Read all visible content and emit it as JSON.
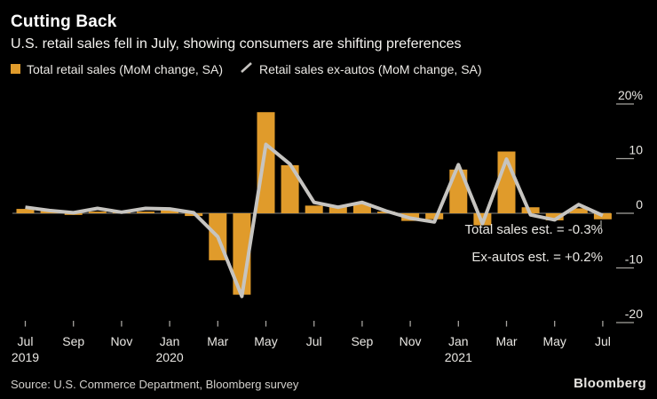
{
  "header": {
    "title": "Cutting Back",
    "subtitle": "U.S. retail sales fell in July, showing consumers are shifting preferences"
  },
  "legend": {
    "bars_label": "Total retail sales (MoM change, SA)",
    "line_label": "Retail sales ex-autos (MoM change, SA)"
  },
  "annotations": {
    "total_est": "Total sales est. = -0.3%",
    "ex_autos_est": "Ex-autos est. = +0.2%"
  },
  "footer": {
    "source": "Source: U.S. Commerce Department, Bloomberg survey",
    "brand": "Bloomberg"
  },
  "colors": {
    "background": "#000000",
    "bar": "#E09B2B",
    "line": "#C6C4C0",
    "tick": "#A5A39E",
    "zero_line": "#85837F",
    "axis_text": "#E9E7E3"
  },
  "chart_data": {
    "type": "bar+line",
    "title": "Cutting Back",
    "x": [
      "Jul 2019",
      "Aug 2019",
      "Sep 2019",
      "Oct 2019",
      "Nov 2019",
      "Dec 2019",
      "Jan 2020",
      "Feb 2020",
      "Mar 2020",
      "Apr 2020",
      "May 2020",
      "Jun 2020",
      "Jul 2020",
      "Aug 2020",
      "Sep 2020",
      "Oct 2020",
      "Nov 2020",
      "Dec 2020",
      "Jan 2021",
      "Feb 2021",
      "Mar 2021",
      "Apr 2021",
      "May 2021",
      "Jun 2021",
      "Jul 2021"
    ],
    "series": [
      {
        "name": "Total retail sales (MoM change, SA)",
        "type": "bar",
        "values": [
          0.8,
          0.4,
          -0.3,
          0.3,
          0.3,
          0.3,
          0.6,
          -0.5,
          -8.6,
          -14.9,
          18.5,
          8.8,
          1.4,
          1.2,
          1.8,
          0.3,
          -1.4,
          -1.1,
          8.0,
          -2.2,
          11.3,
          1.1,
          -1.3,
          0.9,
          -1.1
        ]
      },
      {
        "name": "Retail sales ex-autos (MoM change, SA)",
        "type": "line",
        "values": [
          1.1,
          0.5,
          0.1,
          0.9,
          0.2,
          0.9,
          0.8,
          0.1,
          -4.3,
          -15.2,
          12.6,
          9.0,
          2.0,
          1.1,
          2.0,
          0.4,
          -0.9,
          -1.6,
          8.9,
          -1.9,
          9.9,
          -0.3,
          -1.2,
          1.6,
          -0.4
        ]
      }
    ],
    "ylim": [
      -22,
      22
    ],
    "y_ticks": [
      {
        "value": 20,
        "label": "20%"
      },
      {
        "value": 10,
        "label": "10"
      },
      {
        "value": 0,
        "label": "0"
      },
      {
        "value": -10,
        "label": "-10"
      },
      {
        "value": -20,
        "label": "-20"
      }
    ],
    "x_ticks": [
      {
        "index": 0,
        "label": "Jul",
        "year": "2019"
      },
      {
        "index": 2,
        "label": "Sep"
      },
      {
        "index": 4,
        "label": "Nov"
      },
      {
        "index": 6,
        "label": "Jan",
        "year": "2020"
      },
      {
        "index": 8,
        "label": "Mar"
      },
      {
        "index": 10,
        "label": "May"
      },
      {
        "index": 12,
        "label": "Jul"
      },
      {
        "index": 14,
        "label": "Sep"
      },
      {
        "index": 16,
        "label": "Nov"
      },
      {
        "index": 18,
        "label": "Jan",
        "year": "2021"
      },
      {
        "index": 20,
        "label": "Mar"
      },
      {
        "index": 22,
        "label": "May"
      },
      {
        "index": 24,
        "label": "Jul"
      }
    ],
    "grid": false,
    "legend_position": "top-left",
    "y_axis_side": "right"
  }
}
